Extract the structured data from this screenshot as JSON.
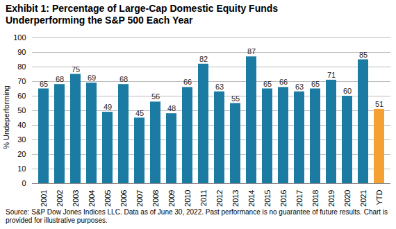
{
  "chart_data": {
    "type": "bar",
    "title": "Exhibit 1: Percentage of Large-Cap Domestic Equity Funds Underperforming the S&P 500 Each Year",
    "y_label": "% Undeperforming",
    "caption": "Source: S&P Dow Jones Indices LLC.  Data as of June 30, 2022.  Past performance is no guarantee of future results.  Chart is provided for illustrative purposes.",
    "categories": [
      "2001",
      "2002",
      "2003",
      "2004",
      "2005",
      "2006",
      "2007",
      "2008",
      "2009",
      "2010",
      "2011",
      "2012",
      "2013",
      "2014",
      "2015",
      "2016",
      "2017",
      "2018",
      "2019",
      "2020",
      "2021",
      "YTD"
    ],
    "values": [
      65,
      68,
      75,
      69,
      49,
      68,
      45,
      56,
      48,
      66,
      82,
      63,
      55,
      87,
      65,
      66,
      63,
      65,
      71,
      60,
      85,
      51
    ],
    "colors": [
      "#1b7ba3",
      "#1b7ba3",
      "#1b7ba3",
      "#1b7ba3",
      "#1b7ba3",
      "#1b7ba3",
      "#1b7ba3",
      "#1b7ba3",
      "#1b7ba3",
      "#1b7ba3",
      "#1b7ba3",
      "#1b7ba3",
      "#1b7ba3",
      "#1b7ba3",
      "#1b7ba3",
      "#1b7ba3",
      "#1b7ba3",
      "#1b7ba3",
      "#1b7ba3",
      "#1b7ba3",
      "#1b7ba3",
      "#f5a033"
    ],
    "ylim": [
      0,
      100
    ],
    "yticks": [
      0,
      10,
      20,
      30,
      40,
      50,
      60,
      70,
      80,
      90,
      100
    ],
    "grid": true,
    "data_labels": true
  }
}
